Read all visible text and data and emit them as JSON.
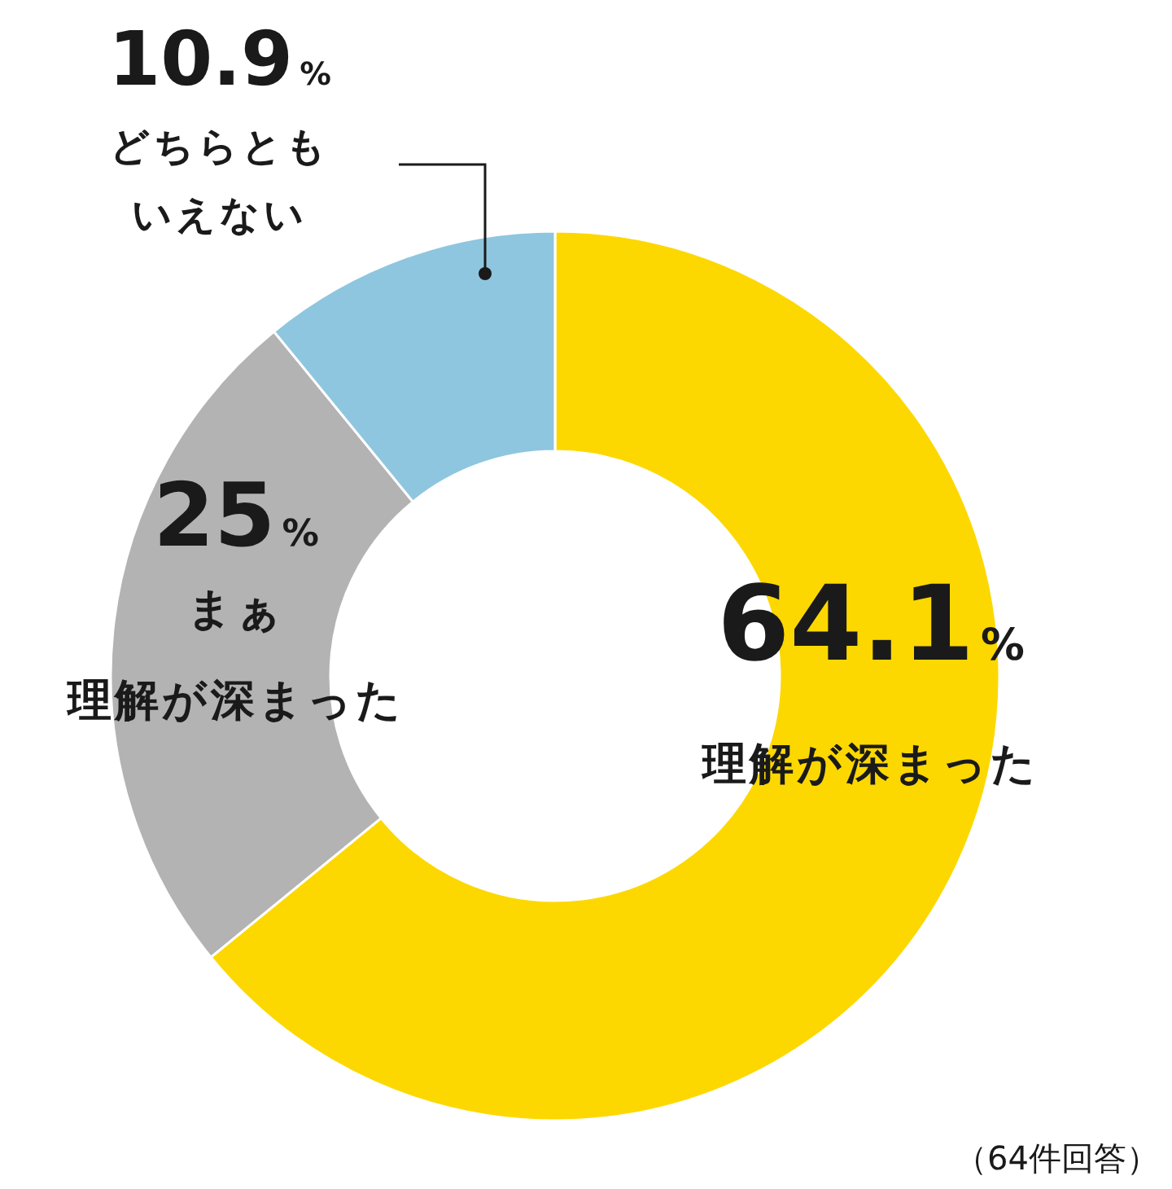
{
  "chart_data": {
    "type": "donut",
    "categories": [
      "理解が深まった",
      "まぁ理解が深まった",
      "どちらともいえない"
    ],
    "values": [
      64.1,
      25,
      10.9
    ],
    "colors": [
      "#fcd800",
      "#b3b3b3",
      "#8fc6df"
    ],
    "value_labels": [
      "64.1%",
      "25%",
      "10.9%"
    ],
    "annotations": [
      "（64件回答）"
    ]
  }
}
